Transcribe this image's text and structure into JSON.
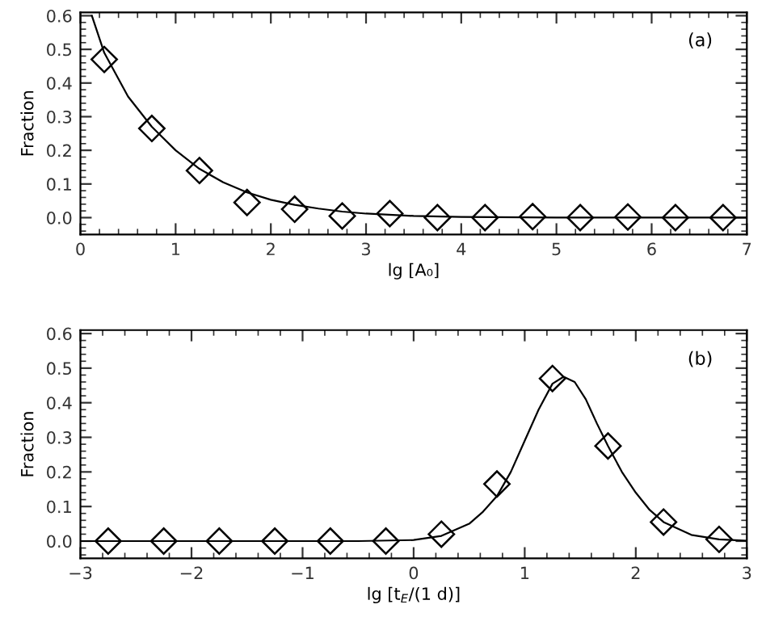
{
  "chart_data": [
    {
      "type": "scatter",
      "xlabel": "lg [A₀]",
      "ylabel": "Fraction",
      "annotations": [
        "(a)"
      ],
      "grid": false,
      "legend": false,
      "xlim": [
        0,
        7
      ],
      "ylim": [
        -0.05,
        0.61
      ],
      "xticks": [
        0,
        1,
        2,
        3,
        4,
        5,
        6,
        7
      ],
      "yticks": [
        {
          "value": 0,
          "label": "0.0"
        },
        {
          "value": 0.1,
          "label": "0.1"
        },
        {
          "value": 0.2,
          "label": "0.2"
        },
        {
          "value": 0.3,
          "label": "0.3"
        },
        {
          "value": 0.4,
          "label": "0.4"
        },
        {
          "value": 0.5,
          "label": "0.5"
        },
        {
          "value": 0.6,
          "label": "0.6"
        }
      ],
      "x": [
        0.25,
        0.75,
        1.25,
        1.75,
        2.25,
        2.75,
        3.25,
        3.75,
        4.25,
        4.75,
        5.25,
        5.75,
        6.25,
        6.75
      ],
      "series": [
        {
          "color": "#000000",
          "marker": "diamond",
          "values": [
            0.47,
            0.265,
            0.14,
            0.045,
            0.025,
            0.005,
            0.012,
            0.0,
            0.0,
            0.003,
            0.0,
            0.002,
            0.0,
            0.0
          ]
        },
        {
          "type": "line",
          "color": "#000000",
          "marker": "none",
          "x": [
            0.12,
            0.25,
            0.5,
            0.75,
            1.0,
            1.25,
            1.5,
            1.75,
            2.0,
            2.25,
            2.5,
            2.75,
            3.0,
            3.5,
            4.0,
            5.0,
            7.0
          ],
          "values": [
            0.6,
            0.49,
            0.36,
            0.27,
            0.2,
            0.145,
            0.105,
            0.075,
            0.053,
            0.038,
            0.027,
            0.018,
            0.012,
            0.005,
            0.002,
            0.0,
            0.0
          ]
        }
      ]
    },
    {
      "type": "scatter",
      "xlabel": "lg [t$_{E}$/(1 d)]",
      "ylabel": "Fraction",
      "annotations": [
        "(b)"
      ],
      "grid": false,
      "legend": false,
      "xlim": [
        -3,
        3
      ],
      "ylim": [
        -0.05,
        0.61
      ],
      "xticks": [
        -3,
        -2,
        -1,
        0,
        1,
        2,
        3
      ],
      "yticks": [
        {
          "value": 0,
          "label": "0.0"
        },
        {
          "value": 0.1,
          "label": "0.1"
        },
        {
          "value": 0.2,
          "label": "0.2"
        },
        {
          "value": 0.3,
          "label": "0.3"
        },
        {
          "value": 0.4,
          "label": "0.4"
        },
        {
          "value": 0.5,
          "label": "0.5"
        },
        {
          "value": 0.6,
          "label": "0.6"
        }
      ],
      "x": [
        -2.75,
        -2.25,
        -1.75,
        -1.25,
        -0.75,
        -0.25,
        0.25,
        0.75,
        1.25,
        1.75,
        2.25,
        2.75
      ],
      "series": [
        {
          "color": "#000000",
          "marker": "diamond",
          "values": [
            0.0,
            0.0,
            0.0,
            0.0,
            0.0,
            0.0,
            0.02,
            0.165,
            0.47,
            0.275,
            0.055,
            0.005
          ]
        },
        {
          "type": "line",
          "color": "#000000",
          "marker": "none",
          "x": [
            -3,
            -0.5,
            0,
            0.25,
            0.5,
            0.625,
            0.75,
            0.875,
            1.0,
            1.125,
            1.25,
            1.35,
            1.45,
            1.55,
            1.65,
            1.75,
            1.875,
            2.0,
            2.125,
            2.25,
            2.5,
            2.75,
            3.0
          ],
          "values": [
            0.0,
            0.0,
            0.003,
            0.015,
            0.05,
            0.085,
            0.13,
            0.2,
            0.29,
            0.38,
            0.455,
            0.475,
            0.46,
            0.41,
            0.34,
            0.275,
            0.2,
            0.14,
            0.09,
            0.055,
            0.018,
            0.005,
            0.001
          ]
        }
      ]
    }
  ]
}
